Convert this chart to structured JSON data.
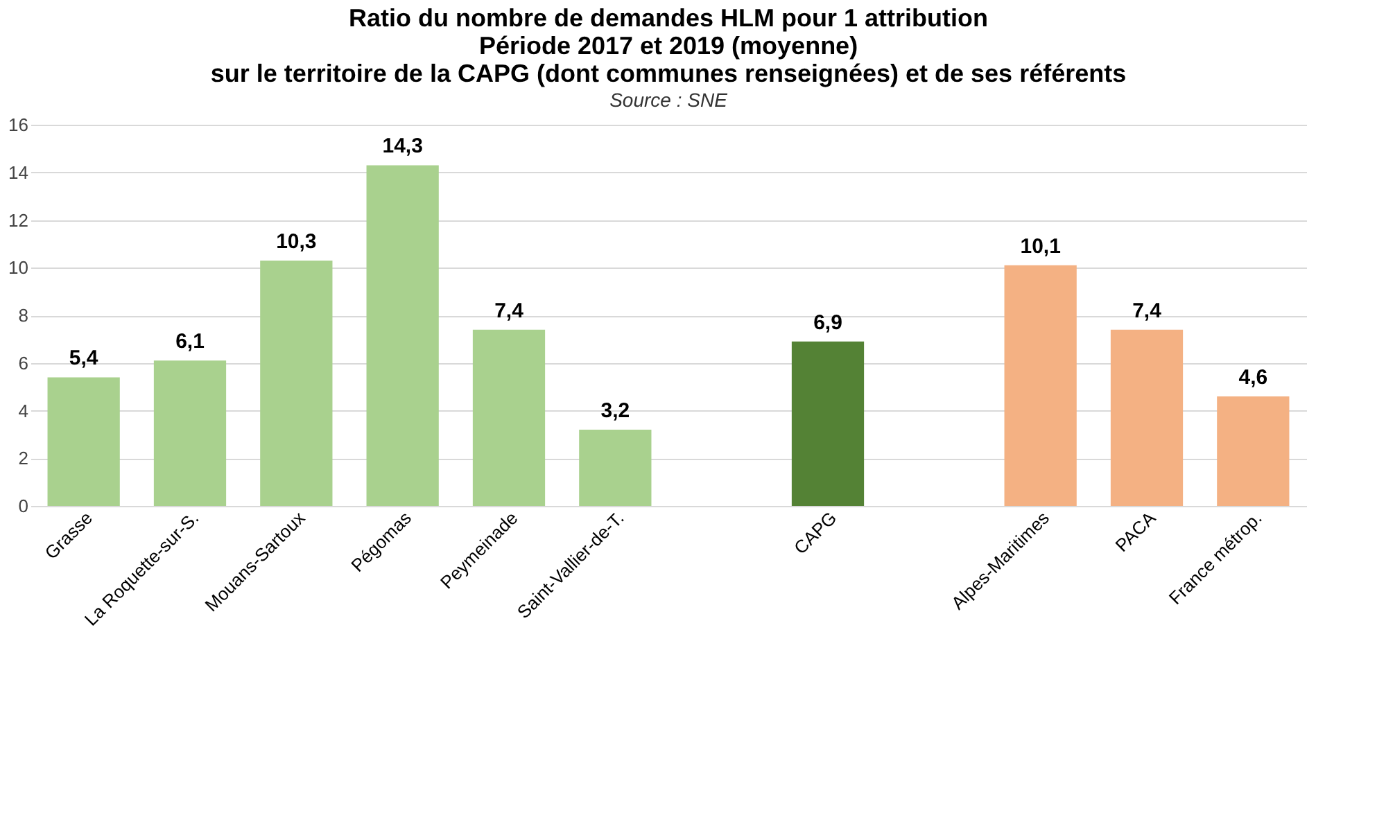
{
  "chart_data": {
    "type": "bar",
    "title": [
      "Ratio du nombre de demandes HLM pour 1 attribution",
      "Période 2017 et 2019 (moyenne)",
      "sur le territoire de la CAPG (dont communes renseignées) et de ses référents"
    ],
    "subtitle": "Source : SNE",
    "categories": [
      "Grasse",
      "La Roquette-sur-S.",
      "Mouans-Sartoux",
      "Pégomas",
      "Peymeinade",
      "Saint-Vallier-de-T.",
      null,
      "CAPG",
      null,
      "Alpes-Maritimes",
      "PACA",
      "France métrop."
    ],
    "values": [
      5.4,
      6.1,
      10.3,
      14.3,
      7.4,
      3.2,
      null,
      6.9,
      null,
      10.1,
      7.4,
      4.6
    ],
    "colors": [
      "#a9d18e",
      "#a9d18e",
      "#a9d18e",
      "#a9d18e",
      "#a9d18e",
      "#a9d18e",
      null,
      "#548235",
      null,
      "#f4b183",
      "#f4b183",
      "#f4b183"
    ],
    "ylim": [
      0,
      16
    ],
    "yticks": [
      0,
      2,
      4,
      6,
      8,
      10,
      12,
      14,
      16
    ],
    "value_labels": [
      "5,4",
      "6,1",
      "10,3",
      "14,3",
      "7,4",
      "3,2",
      null,
      "6,9",
      null,
      "10,1",
      "7,4",
      "4,6"
    ],
    "grid": "y",
    "legend": false
  }
}
